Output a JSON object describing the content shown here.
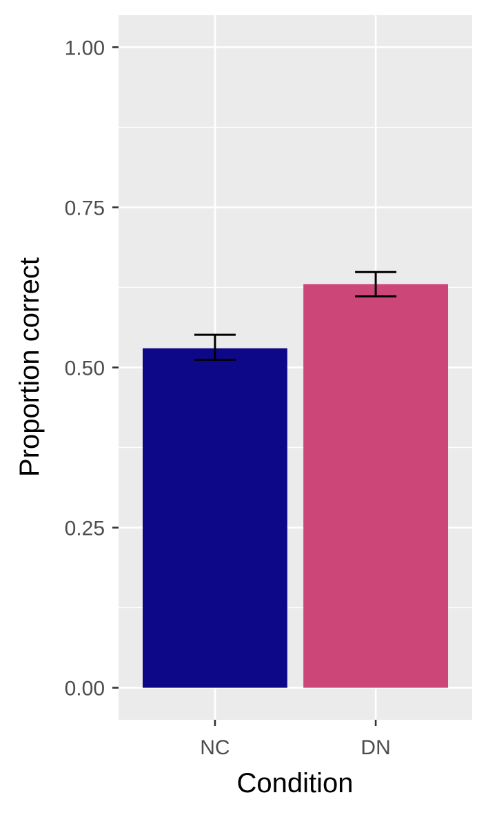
{
  "chart_data": {
    "type": "bar",
    "categories": [
      "NC",
      "DN"
    ],
    "values": [
      0.53,
      0.63
    ],
    "error": [
      {
        "low": 0.512,
        "high": 0.551
      },
      {
        "low": 0.611,
        "high": 0.649
      }
    ],
    "colors": [
      "#0d0887",
      "#cc4778"
    ],
    "xlabel": "Condition",
    "ylabel": "Proportion correct",
    "ylim": [
      -0.05,
      1.05
    ],
    "yticks": [
      0.0,
      0.25,
      0.5,
      0.75,
      1.0
    ],
    "ytick_labels": [
      "0.00",
      "0.25",
      "0.50",
      "0.75",
      "1.00"
    ],
    "grid": true,
    "panel_background": "#ebebeb",
    "grid_color": "#ffffff"
  }
}
